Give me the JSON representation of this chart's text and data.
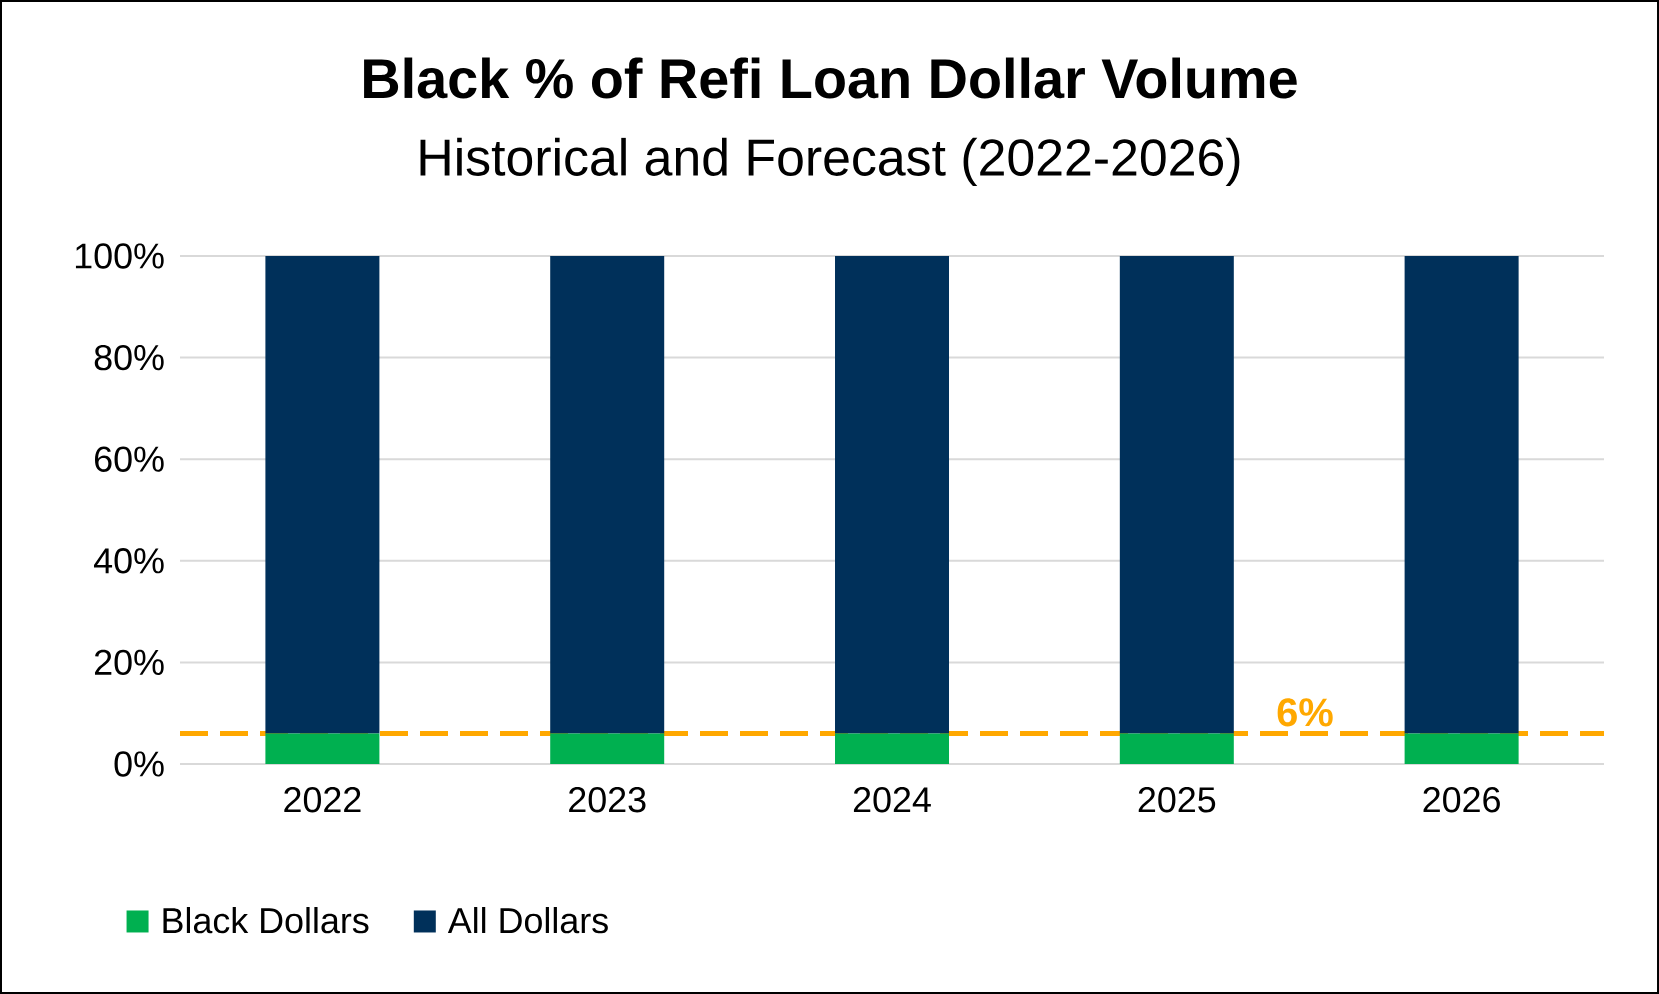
{
  "chart_data": {
    "type": "bar",
    "title": "Black % of Refi Loan Dollar Volume",
    "subtitle": "Historical and Forecast (2022-2026)",
    "categories": [
      "2022",
      "2023",
      "2024",
      "2025",
      "2026"
    ],
    "stacked": true,
    "series": [
      {
        "name": "Black Dollars",
        "color": "#00b050",
        "values": [
          6,
          6,
          6,
          6,
          6
        ]
      },
      {
        "name": "All Dollars",
        "color": "#00305a",
        "values": [
          94,
          94,
          94,
          94,
          94
        ]
      }
    ],
    "ylim": [
      0,
      100
    ],
    "yticks": [
      {
        "value": 0,
        "label": "0%"
      },
      {
        "value": 20,
        "label": "20%"
      },
      {
        "value": 40,
        "label": "40%"
      },
      {
        "value": 60,
        "label": "60%"
      },
      {
        "value": 80,
        "label": "80%"
      },
      {
        "value": 100,
        "label": "100%"
      }
    ],
    "grid": "y",
    "legend": "bottom left",
    "ref_lines": [
      {
        "axis": "y",
        "value": 6,
        "label": "6%",
        "color": "#ffa800",
        "line_style": "dashed"
      }
    ]
  }
}
